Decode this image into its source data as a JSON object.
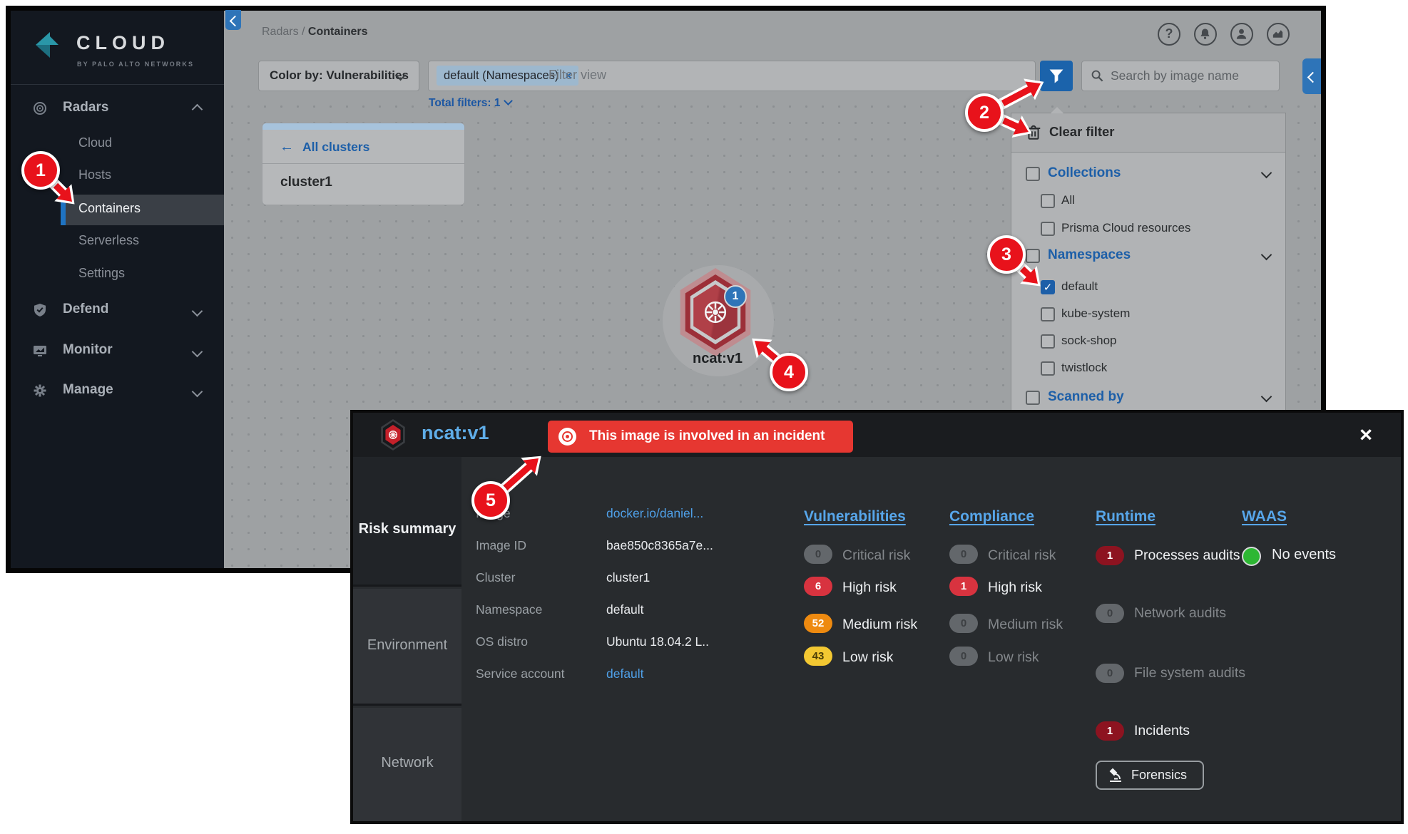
{
  "sidebar": {
    "logo": {
      "title": "CLOUD",
      "subtitle": "BY PALO ALTO NETWORKS"
    },
    "sections": [
      {
        "label": "Radars",
        "expanded": true
      },
      {
        "label": "Defend"
      },
      {
        "label": "Monitor"
      },
      {
        "label": "Manage"
      }
    ],
    "radar_children": [
      {
        "label": "Cloud"
      },
      {
        "label": "Hosts"
      },
      {
        "label": "Containers",
        "active": true
      },
      {
        "label": "Serverless"
      },
      {
        "label": "Settings"
      }
    ]
  },
  "topbar": {
    "breadcrumb": {
      "parent": "Radars",
      "separator": " / ",
      "current": "Containers"
    },
    "icons": [
      "help-icon",
      "notifications-icon",
      "user-icon",
      "activity-icon"
    ]
  },
  "toolbar": {
    "color_by": "Color by: Vulnerabilities",
    "filter_chip": "default (Namespaces)",
    "chip_remove": "×",
    "filter_placeholder": "Filter view",
    "search_placeholder": "Search by image name",
    "total_filters": "Total filters: 1"
  },
  "clusters_card": {
    "back_arrow": "←",
    "back_label": "All clusters",
    "cluster_name": "cluster1"
  },
  "node": {
    "label": "ncat:v1",
    "badge": "1"
  },
  "filter_panel": {
    "clear_label": "Clear filter",
    "checkmark": "✓",
    "groups": [
      {
        "label": "Collections",
        "items": [
          {
            "label": "All",
            "checked": false
          },
          {
            "label": "Prisma Cloud resources",
            "checked": false
          }
        ]
      },
      {
        "label": "Namespaces",
        "items": [
          {
            "label": "default",
            "checked": true
          },
          {
            "label": "kube-system",
            "checked": false
          },
          {
            "label": "sock-shop",
            "checked": false
          },
          {
            "label": "twistlock",
            "checked": false
          }
        ]
      },
      {
        "label": "Scanned by",
        "items": []
      }
    ]
  },
  "details": {
    "title": "ncat:v1",
    "banner": "This image is involved in an incident",
    "close": "×",
    "tabs": [
      {
        "label": "Risk summary",
        "active": true
      },
      {
        "label": "Environment",
        "active": false
      },
      {
        "label": "Network",
        "active": false
      }
    ],
    "fields": [
      {
        "label": "Image",
        "value": "docker.io/daniel...",
        "link": true
      },
      {
        "label": "Image ID",
        "value": "bae850c8365a7e...",
        "link": false
      },
      {
        "label": "Cluster",
        "value": "cluster1",
        "link": false
      },
      {
        "label": "Namespace",
        "value": "default",
        "link": false
      },
      {
        "label": "OS distro",
        "value": "Ubuntu 18.04.2 L..",
        "link": false
      },
      {
        "label": "Service account",
        "value": "default",
        "link": true
      }
    ],
    "vulnerabilities": {
      "header": "Vulnerabilities",
      "rows": [
        {
          "count": "0",
          "label": "Critical risk",
          "severity": "none"
        },
        {
          "count": "6",
          "label": "High risk",
          "severity": "high"
        },
        {
          "count": "52",
          "label": "Medium risk",
          "severity": "medium"
        },
        {
          "count": "43",
          "label": "Low risk",
          "severity": "low"
        }
      ]
    },
    "compliance": {
      "header": "Compliance",
      "rows": [
        {
          "count": "0",
          "label": "Critical risk",
          "severity": "none"
        },
        {
          "count": "1",
          "label": "High risk",
          "severity": "high"
        },
        {
          "count": "0",
          "label": "Medium risk",
          "severity": "none"
        },
        {
          "count": "0",
          "label": "Low risk",
          "severity": "none"
        }
      ]
    },
    "runtime": {
      "header": "Runtime",
      "rows": [
        {
          "count": "1",
          "label": "Processes audits",
          "severity": "incident"
        },
        {
          "count": "0",
          "label": "Network audits",
          "severity": "none"
        },
        {
          "count": "0",
          "label": "File system audits",
          "severity": "none"
        },
        {
          "count": "1",
          "label": "Incidents",
          "severity": "incident"
        }
      ],
      "button": "Forensics"
    },
    "waas": {
      "header": "WAAS",
      "status": "No events"
    }
  },
  "callouts": [
    "1",
    "2",
    "3",
    "4",
    "5"
  ],
  "colors": {
    "accent_blue": "#1d5fa8",
    "funnel_blue": "#1b63ab",
    "banner_red": "#e63731",
    "callout_red": "#e8121b",
    "severity_high": "#d8333f",
    "severity_medium": "#ee8a10",
    "severity_low": "#f3c832",
    "severity_incident": "#8d1320",
    "severity_none": "#63676b",
    "waas_green": "#2db733",
    "link_blue": "#4fa0e8",
    "sidebar_bg": "#131820"
  }
}
